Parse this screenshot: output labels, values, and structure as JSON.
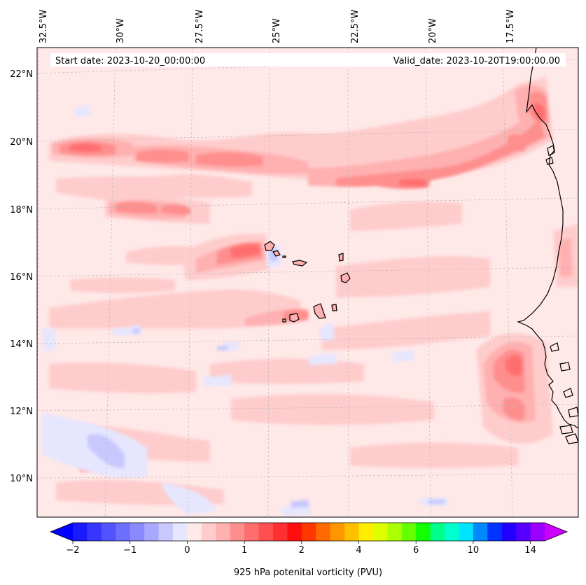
{
  "map": {
    "start_date_text": "Start date: 2023-10-20_00:00:00",
    "valid_date_text": "Valid_date: 2023-10-20T19:00:00.00",
    "longitude_labels": [
      "32.5°W",
      "30°W",
      "27.5°W",
      "25°W",
      "22.5°W",
      "20°W",
      "17.5°W"
    ],
    "latitude_labels": [
      "22°N",
      "20°N",
      "18°N",
      "16°N",
      "14°N",
      "12°N",
      "10°N"
    ],
    "gridlines": true,
    "background_color": "#ffe8e8"
  },
  "colorbar": {
    "label": "925 hPa potenital vorticity (PVU)",
    "tick_labels": [
      "−2",
      "−1",
      "0",
      "1",
      "2",
      "4",
      "6",
      "10",
      "14"
    ],
    "colors": [
      "#1a1aff",
      "#3636ff",
      "#5252ff",
      "#6e6eff",
      "#8a8aff",
      "#a8a8ff",
      "#c8c8ff",
      "#e6e6ff",
      "#ffe8e8",
      "#ffcccc",
      "#ffb0b0",
      "#ff8e8e",
      "#ff6e6e",
      "#ff5050",
      "#ff3030",
      "#ff0e0e",
      "#ff3800",
      "#ff6a00",
      "#ff9600",
      "#ffc000",
      "#ffee00",
      "#ddff00",
      "#aaff00",
      "#66ff00",
      "#11ff00",
      "#00ff88",
      "#00ffcc",
      "#00e4ff",
      "#0088ff",
      "#0033ff",
      "#2200ff",
      "#5500ff",
      "#9900ff"
    ],
    "under_color": "#0000ff",
    "over_color": "#cc00ff"
  }
}
